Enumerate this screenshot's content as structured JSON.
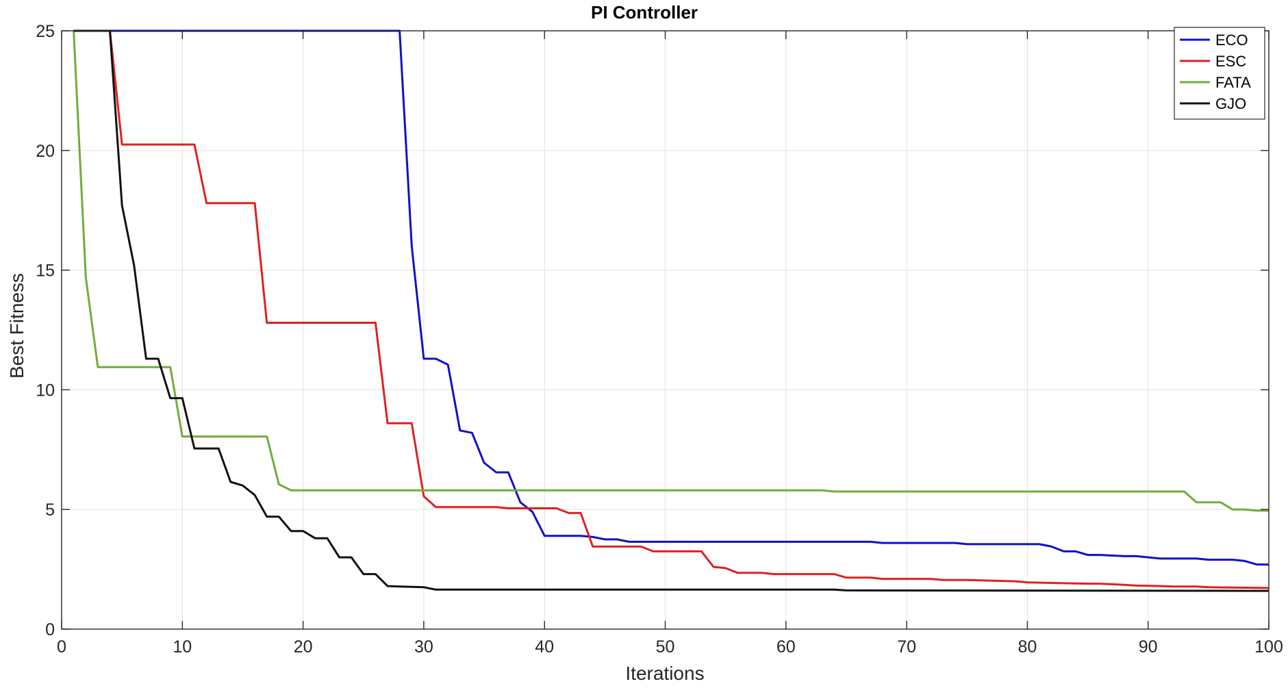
{
  "chart_data": {
    "type": "line",
    "title": "PI Controller",
    "xlabel": "Iterations",
    "ylabel": "Best Fitness",
    "xlim": [
      0,
      100
    ],
    "ylim": [
      0,
      25
    ],
    "xticks": [
      0,
      10,
      20,
      30,
      40,
      50,
      60,
      70,
      80,
      90,
      100
    ],
    "yticks": [
      0,
      5,
      10,
      15,
      20,
      25
    ],
    "grid": true,
    "legend_position": "top-right",
    "series": [
      {
        "name": "ECO",
        "color": "#1010c8",
        "x": [
          1,
          28,
          29,
          30,
          31,
          32,
          33,
          34,
          35,
          36,
          37,
          38,
          39,
          40,
          43,
          44,
          45,
          46,
          47,
          67,
          68,
          74,
          75,
          81,
          82,
          83,
          84,
          85,
          86,
          88,
          89,
          91,
          92,
          94,
          95,
          97,
          98,
          99,
          100
        ],
        "y": [
          25,
          25,
          16,
          11.3,
          11.3,
          11.05,
          8.3,
          8.2,
          6.95,
          6.55,
          6.55,
          5.3,
          4.9,
          3.9,
          3.9,
          3.85,
          3.75,
          3.75,
          3.65,
          3.65,
          3.6,
          3.6,
          3.55,
          3.55,
          3.45,
          3.25,
          3.25,
          3.1,
          3.1,
          3.05,
          3.05,
          2.95,
          2.95,
          2.95,
          2.9,
          2.9,
          2.85,
          2.7,
          2.7
        ]
      },
      {
        "name": "ESC",
        "color": "#e02020",
        "x": [
          1,
          4,
          5,
          11,
          12,
          16,
          17,
          26,
          27,
          29,
          30,
          31,
          36,
          37,
          41,
          42,
          43,
          44,
          48,
          49,
          53,
          54,
          55,
          56,
          58,
          59,
          64,
          65,
          67,
          68,
          72,
          73,
          75,
          79,
          80,
          85,
          86,
          88,
          89,
          91,
          92,
          94,
          95,
          100
        ],
        "y": [
          25,
          25,
          20.25,
          20.25,
          17.8,
          17.8,
          12.8,
          12.8,
          8.6,
          8.6,
          5.55,
          5.1,
          5.1,
          5.05,
          5.05,
          4.85,
          4.85,
          3.45,
          3.45,
          3.25,
          3.25,
          2.6,
          2.55,
          2.35,
          2.35,
          2.3,
          2.3,
          2.15,
          2.15,
          2.1,
          2.1,
          2.05,
          2.05,
          2.0,
          1.95,
          1.9,
          1.9,
          1.85,
          1.82,
          1.8,
          1.78,
          1.78,
          1.75,
          1.72
        ]
      },
      {
        "name": "FATA",
        "color": "#6fad3a",
        "x": [
          1,
          2,
          3,
          9,
          10,
          17,
          18,
          19,
          63,
          64,
          93,
          94,
          96,
          97,
          98,
          99,
          100
        ],
        "y": [
          25,
          14.7,
          10.95,
          10.95,
          8.05,
          8.05,
          6.05,
          5.8,
          5.8,
          5.75,
          5.75,
          5.3,
          5.3,
          5.0,
          5.0,
          4.95,
          4.95
        ]
      },
      {
        "name": "GJO",
        "color": "#111111",
        "x": [
          1,
          4,
          5,
          6,
          7,
          8,
          9,
          10,
          11,
          13,
          14,
          15,
          16,
          17,
          18,
          19,
          20,
          21,
          22,
          23,
          24,
          25,
          26,
          27,
          28,
          30,
          31,
          64,
          65,
          100
        ],
        "y": [
          25,
          25,
          17.7,
          15.2,
          11.3,
          11.3,
          9.65,
          9.65,
          7.55,
          7.55,
          6.15,
          6.0,
          5.6,
          4.7,
          4.7,
          4.1,
          4.1,
          3.8,
          3.8,
          3.0,
          3.0,
          2.3,
          2.3,
          1.8,
          1.78,
          1.75,
          1.65,
          1.65,
          1.62,
          1.6
        ]
      }
    ]
  }
}
